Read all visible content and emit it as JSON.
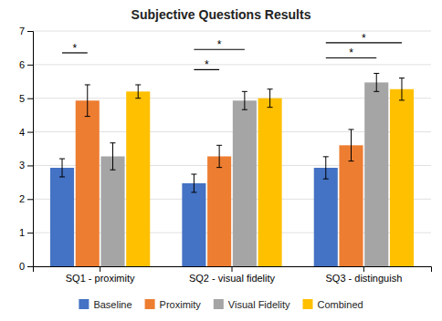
{
  "chart_data": {
    "type": "bar",
    "title": "Subjective Questions Results",
    "categories": [
      "SQ1 - proximity",
      "SQ2 - visual fidelity",
      "SQ3 - distinguish"
    ],
    "series": [
      {
        "name": "Baseline",
        "color": "#4472C4",
        "values": [
          2.93,
          2.47,
          2.93
        ],
        "errors": [
          0.27,
          0.27,
          0.33
        ]
      },
      {
        "name": "Proximity",
        "color": "#ED7D31",
        "values": [
          4.93,
          3.27,
          3.6
        ],
        "errors": [
          0.47,
          0.33,
          0.47
        ]
      },
      {
        "name": "Visual Fidelity",
        "color": "#A5A5A5",
        "values": [
          3.27,
          4.93,
          5.47
        ],
        "errors": [
          0.4,
          0.27,
          0.27
        ]
      },
      {
        "name": "Combined",
        "color": "#FFC000",
        "values": [
          5.2,
          5.0,
          5.27
        ],
        "errors": [
          0.2,
          0.27,
          0.33
        ]
      }
    ],
    "ylim": [
      0,
      7
    ],
    "yticks": [
      0,
      1,
      2,
      3,
      4,
      5,
      6,
      7
    ],
    "grid": true,
    "legend": "bottom",
    "annotations": [
      {
        "label": "*",
        "category": "SQ1 - proximity",
        "from": "Baseline",
        "to": "Proximity",
        "y": 6.35
      },
      {
        "label": "*",
        "category": "SQ2 - visual fidelity",
        "from": "Baseline",
        "to": "Proximity",
        "y": 5.85
      },
      {
        "label": "*",
        "category": "SQ2 - visual fidelity",
        "from": "Baseline",
        "to": "Visual Fidelity",
        "y": 6.45
      },
      {
        "label": "*",
        "category": "SQ3 - distinguish",
        "from": "Baseline",
        "to": "Visual Fidelity",
        "y": 6.2
      },
      {
        "label": "*",
        "category": "SQ3 - distinguish",
        "from": "Baseline",
        "to": "Combined",
        "y": 6.65
      }
    ]
  }
}
